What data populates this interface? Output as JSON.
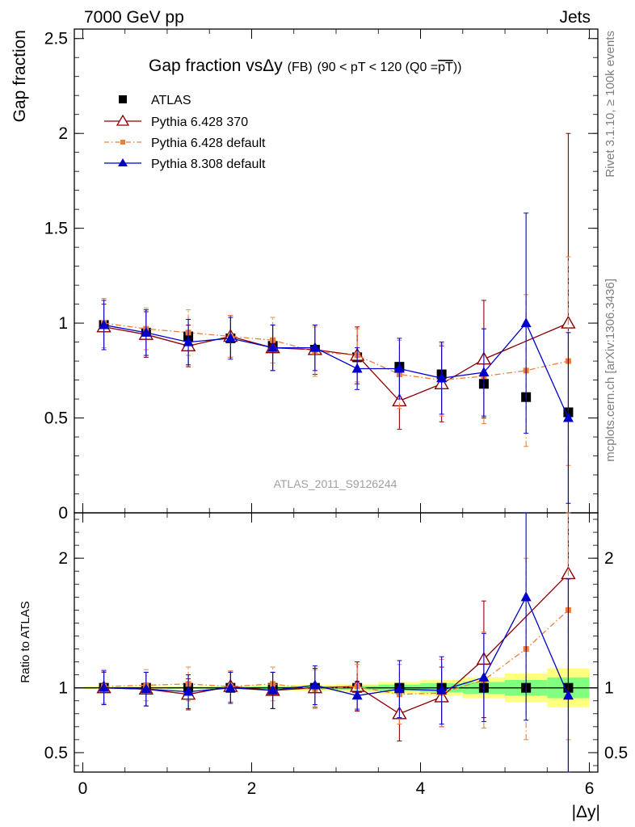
{
  "header": {
    "left": "7000 GeV pp",
    "right": "Jets"
  },
  "chart_data": {
    "type": "scatter",
    "title_main": "Gap fraction vs",
    "title_delta": "Δy",
    "title_fb": "(FB)",
    "title_range": "(90 < pT < 120 (Q0 =",
    "title_pt": "pT",
    "title_end": "))",
    "ylabel_top": "Gap fraction",
    "ylabel_bottom": "Ratio to ATLAS",
    "xlabel": "|Δy|",
    "watermark": "ATLAS_2011_S9126244",
    "side_top": "Rivet 3.1.10, ≥ 100k events",
    "side_bottom": "mcplots.cern.ch [arXiv:1306.3436]",
    "top_ylim": [
      0,
      2.55
    ],
    "ratio_ylim": [
      0.35,
      2.35
    ],
    "xlim": [
      -0.1,
      6.1
    ],
    "top_yticks": [
      {
        "v": 0,
        "label": "0"
      },
      {
        "v": 0.5,
        "label": "0.5"
      },
      {
        "v": 1,
        "label": "1"
      },
      {
        "v": 1.5,
        "label": "1.5"
      },
      {
        "v": 2,
        "label": "2"
      },
      {
        "v": 2.5,
        "label": "2.5"
      }
    ],
    "ratio_yticks": [
      {
        "v": 0.5,
        "label": "0.5"
      },
      {
        "v": 1,
        "label": "1"
      },
      {
        "v": 2,
        "label": "2"
      }
    ],
    "xticks": [
      {
        "v": 0,
        "label": "0"
      },
      {
        "v": 2,
        "label": "2"
      },
      {
        "v": 4,
        "label": "4"
      },
      {
        "v": 6,
        "label": "6"
      }
    ],
    "series": [
      {
        "name": "ATLAS",
        "color": "#000000",
        "marker": "square",
        "x": [
          0.25,
          0.75,
          1.25,
          1.75,
          2.25,
          2.75,
          3.25,
          3.75,
          4.25,
          4.75,
          5.25,
          5.75
        ],
        "y": [
          0.99,
          0.95,
          0.93,
          0.92,
          0.88,
          0.86,
          0.82,
          0.77,
          0.73,
          0.68,
          0.61,
          0.53
        ],
        "ratio": [
          1,
          1,
          1,
          1,
          1,
          1,
          1,
          1,
          1,
          1,
          1,
          1
        ]
      },
      {
        "name": "Pythia 6.428 370",
        "color": "#8b0000",
        "marker": "triangle-open",
        "line": "solid",
        "x": [
          0.25,
          0.75,
          1.25,
          1.75,
          2.25,
          2.75,
          3.25,
          3.75,
          4.25,
          4.75,
          5.75
        ],
        "y": [
          0.98,
          0.94,
          0.88,
          0.93,
          0.87,
          0.86,
          0.83,
          0.59,
          0.68,
          0.81,
          1.0
        ],
        "yerr": [
          0.12,
          0.12,
          0.11,
          0.11,
          0.12,
          0.13,
          0.15,
          0.15,
          0.2,
          0.31,
          1.0
        ],
        "ratio": [
          1.0,
          0.99,
          0.95,
          1.01,
          0.98,
          1.0,
          1.01,
          0.8,
          0.93,
          1.22,
          1.88
        ],
        "ratio_err": [
          0.12,
          0.13,
          0.12,
          0.12,
          0.14,
          0.15,
          0.19,
          0.21,
          0.23,
          0.45,
          1.6
        ]
      },
      {
        "name": "Pythia 6.428 default",
        "color": "#ee7d3b",
        "marker": "square-small",
        "line": "dashdot",
        "x": [
          0.25,
          0.75,
          1.25,
          1.75,
          2.25,
          2.75,
          3.25,
          3.75,
          4.25,
          4.75,
          5.25,
          5.75
        ],
        "y": [
          1.0,
          0.97,
          0.95,
          0.93,
          0.91,
          0.85,
          0.83,
          0.73,
          0.7,
          0.72,
          0.75,
          0.8
        ],
        "yerr": [
          0.13,
          0.11,
          0.12,
          0.11,
          0.12,
          0.13,
          0.14,
          0.18,
          0.19,
          0.25,
          0.4,
          0.55
        ],
        "ratio": [
          1.01,
          1.02,
          1.03,
          1.01,
          1.03,
          0.99,
          1.01,
          0.95,
          0.96,
          1.06,
          1.3,
          1.6
        ],
        "ratio_err": [
          0.13,
          0.12,
          0.13,
          0.12,
          0.13,
          0.15,
          0.17,
          0.23,
          0.26,
          0.37,
          0.7,
          1.0
        ]
      },
      {
        "name": "Pythia 8.308 default",
        "color": "#0000cc",
        "marker": "triangle-filled",
        "line": "solid",
        "x": [
          0.25,
          0.75,
          1.25,
          1.75,
          2.25,
          2.75,
          3.25,
          3.75,
          4.25,
          4.75,
          5.25,
          5.75
        ],
        "y": [
          0.99,
          0.95,
          0.9,
          0.92,
          0.87,
          0.87,
          0.76,
          0.76,
          0.71,
          0.74,
          1.0,
          0.5
        ],
        "yerr": [
          0.13,
          0.12,
          0.12,
          0.11,
          0.12,
          0.12,
          0.11,
          0.16,
          0.19,
          0.23,
          0.58,
          0.45
        ],
        "ratio": [
          1.0,
          0.99,
          0.97,
          1.0,
          0.98,
          1.02,
          0.94,
          0.99,
          0.98,
          1.08,
          1.7,
          0.94
        ],
        "ratio_err": [
          0.13,
          0.13,
          0.13,
          0.12,
          0.14,
          0.15,
          0.11,
          0.22,
          0.26,
          0.34,
          0.95,
          0.9
        ]
      }
    ],
    "bands": {
      "x": [
        0.25,
        0.75,
        1.25,
        1.75,
        2.25,
        2.75,
        3.25,
        3.75,
        4.25,
        4.75,
        5.25,
        5.75
      ],
      "green": [
        0.005,
        0.005,
        0.006,
        0.008,
        0.01,
        0.012,
        0.016,
        0.025,
        0.035,
        0.045,
        0.06,
        0.08
      ],
      "yellow": [
        0.01,
        0.01,
        0.012,
        0.015,
        0.02,
        0.024,
        0.03,
        0.045,
        0.06,
        0.08,
        0.11,
        0.15
      ]
    }
  }
}
